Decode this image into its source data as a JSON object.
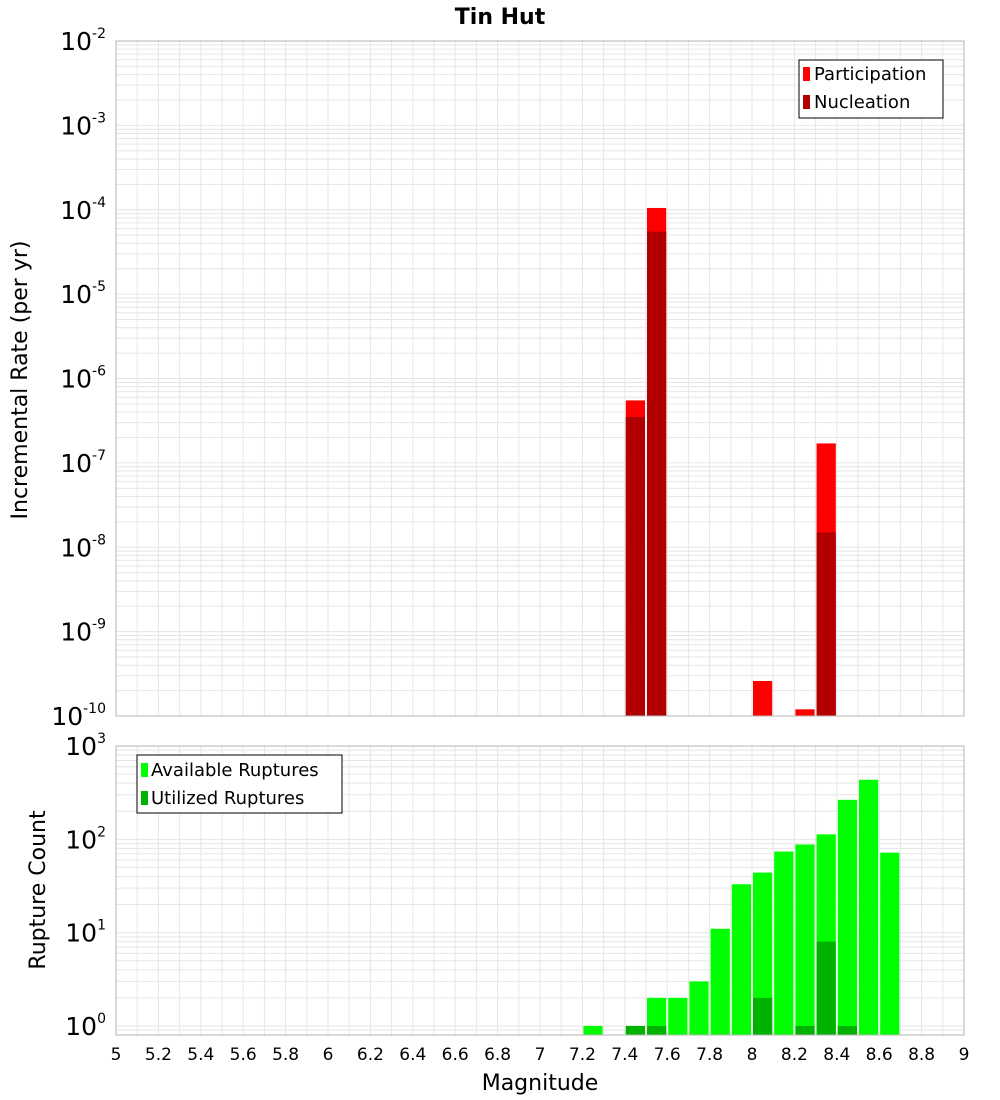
{
  "title": "Tin Hut",
  "colors": {
    "participation": "#ff0000",
    "nucleation": "#b20000",
    "available": "#00ff00",
    "utilized": "#00b200",
    "grid": "#e6e6e6",
    "frame": "#b4b4b4"
  },
  "chart_data": [
    {
      "type": "bar",
      "name": "rate",
      "ylabel": "Incremental Rate (per yr)",
      "yscale": "log",
      "ylim": [
        1e-10,
        0.01
      ],
      "ytick_exponents": [
        -2,
        -3,
        -4,
        -5,
        -6,
        -7,
        -8,
        -9,
        -10
      ],
      "bar_width": 0.1,
      "legend_position": "top-right",
      "legend": [
        "Participation",
        "Nucleation"
      ],
      "series": [
        {
          "name": "Participation",
          "color": "#ff0000",
          "points": [
            [
              7.45,
              5.5e-07
            ],
            [
              7.55,
              0.000105
            ],
            [
              8.05,
              2.6e-10
            ],
            [
              8.25,
              1.2e-10
            ],
            [
              8.35,
              1.7e-07
            ]
          ]
        },
        {
          "name": "Nucleation",
          "color": "#b20000",
          "points": [
            [
              7.45,
              3.5e-07
            ],
            [
              7.55,
              5.5e-05
            ],
            [
              8.35,
              1.5e-08
            ]
          ]
        }
      ]
    },
    {
      "type": "bar",
      "name": "count",
      "ylabel": "Rupture Count",
      "xlabel": "Magnitude",
      "yscale": "log",
      "ylim": [
        0.8,
        1000
      ],
      "ytick_exponents": [
        3,
        2,
        1,
        0
      ],
      "xlim": [
        5,
        9
      ],
      "xticks": [
        "5",
        "5.2",
        "5.4",
        "5.6",
        "5.8",
        "6",
        "6.2",
        "6.4",
        "6.6",
        "6.8",
        "7",
        "7.2",
        "7.4",
        "7.6",
        "7.8",
        "8",
        "8.2",
        "8.4",
        "8.6",
        "8.8",
        "9"
      ],
      "bar_width": 0.1,
      "legend_position": "top-left",
      "legend": [
        "Available Ruptures",
        "Utilized Ruptures"
      ],
      "series": [
        {
          "name": "Available Ruptures",
          "color": "#00ff00",
          "points": [
            [
              7.25,
              1
            ],
            [
              7.45,
              1
            ],
            [
              7.55,
              2
            ],
            [
              7.65,
              2
            ],
            [
              7.75,
              3
            ],
            [
              7.85,
              11
            ],
            [
              7.95,
              33
            ],
            [
              8.05,
              44
            ],
            [
              8.15,
              74
            ],
            [
              8.25,
              88
            ],
            [
              8.35,
              113
            ],
            [
              8.45,
              265
            ],
            [
              8.55,
              435
            ],
            [
              8.65,
              72
            ]
          ]
        },
        {
          "name": "Utilized Ruptures",
          "color": "#00b200",
          "points": [
            [
              7.45,
              1
            ],
            [
              7.55,
              1
            ],
            [
              8.05,
              2
            ],
            [
              8.25,
              1
            ],
            [
              8.35,
              8
            ],
            [
              8.45,
              1
            ]
          ]
        }
      ]
    }
  ]
}
